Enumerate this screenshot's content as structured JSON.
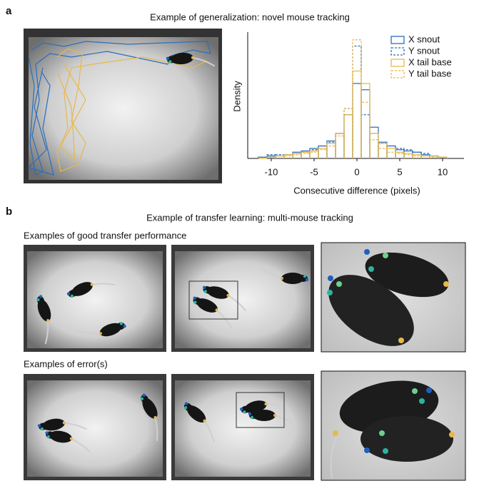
{
  "panel_a": {
    "label": "a",
    "title": "Example of generalization: novel mouse tracking"
  },
  "chart_data": {
    "type": "histogram",
    "xlabel": "Consecutive difference (pixels)",
    "ylabel": "Density",
    "bins": [
      -11.5,
      -10.5,
      -9.5,
      -8.5,
      -7.5,
      -6.5,
      -5.5,
      -4.5,
      -3.5,
      -2.5,
      -1.5,
      -0.5,
      0.5,
      1.5,
      2.5,
      3.5,
      4.5,
      5.5,
      6.5,
      7.5,
      8.5,
      9.5,
      10.5
    ],
    "series": [
      {
        "name": "X snout",
        "color": "#2a6ebd",
        "linestyle": "solid",
        "values": [
          0.01,
          0.02,
          0.02,
          0.03,
          0.05,
          0.06,
          0.08,
          0.1,
          0.14,
          0.2,
          0.35,
          0.6,
          0.55,
          0.25,
          0.13,
          0.1,
          0.07,
          0.06,
          0.05,
          0.03,
          0.02,
          0.01
        ]
      },
      {
        "name": "Y snout",
        "color": "#2a6ebd",
        "linestyle": "dashed",
        "values": [
          0.01,
          0.03,
          0.03,
          0.03,
          0.04,
          0.05,
          0.07,
          0.1,
          0.13,
          0.2,
          0.4,
          0.9,
          0.35,
          0.2,
          0.12,
          0.1,
          0.08,
          0.07,
          0.05,
          0.04,
          0.02,
          0.01
        ]
      },
      {
        "name": "X tail base",
        "color": "#e8b84a",
        "linestyle": "solid",
        "values": [
          0,
          0.01,
          0.02,
          0.03,
          0.04,
          0.05,
          0.06,
          0.08,
          0.12,
          0.2,
          0.35,
          0.7,
          0.6,
          0.2,
          0.12,
          0.08,
          0.05,
          0.04,
          0.03,
          0.02,
          0.02,
          0.01
        ]
      },
      {
        "name": "Y tail base",
        "color": "#e8b84a",
        "linestyle": "dashed",
        "values": [
          0,
          0.01,
          0.02,
          0.02,
          0.03,
          0.04,
          0.05,
          0.07,
          0.1,
          0.18,
          0.4,
          0.95,
          0.45,
          0.15,
          0.08,
          0.05,
          0.04,
          0.03,
          0.02,
          0.02,
          0.01,
          0.01
        ]
      }
    ],
    "xlim": [
      -12.75,
      12.5
    ],
    "xticks": [
      -10,
      -5,
      0,
      5,
      10
    ],
    "ylim": [
      0,
      1
    ],
    "legend": "upper right"
  },
  "panel_b": {
    "label": "b",
    "title": "Example of transfer learning: multi-mouse tracking",
    "row_labels": [
      "Examples of good transfer performance",
      "Examples of error(s)"
    ]
  }
}
